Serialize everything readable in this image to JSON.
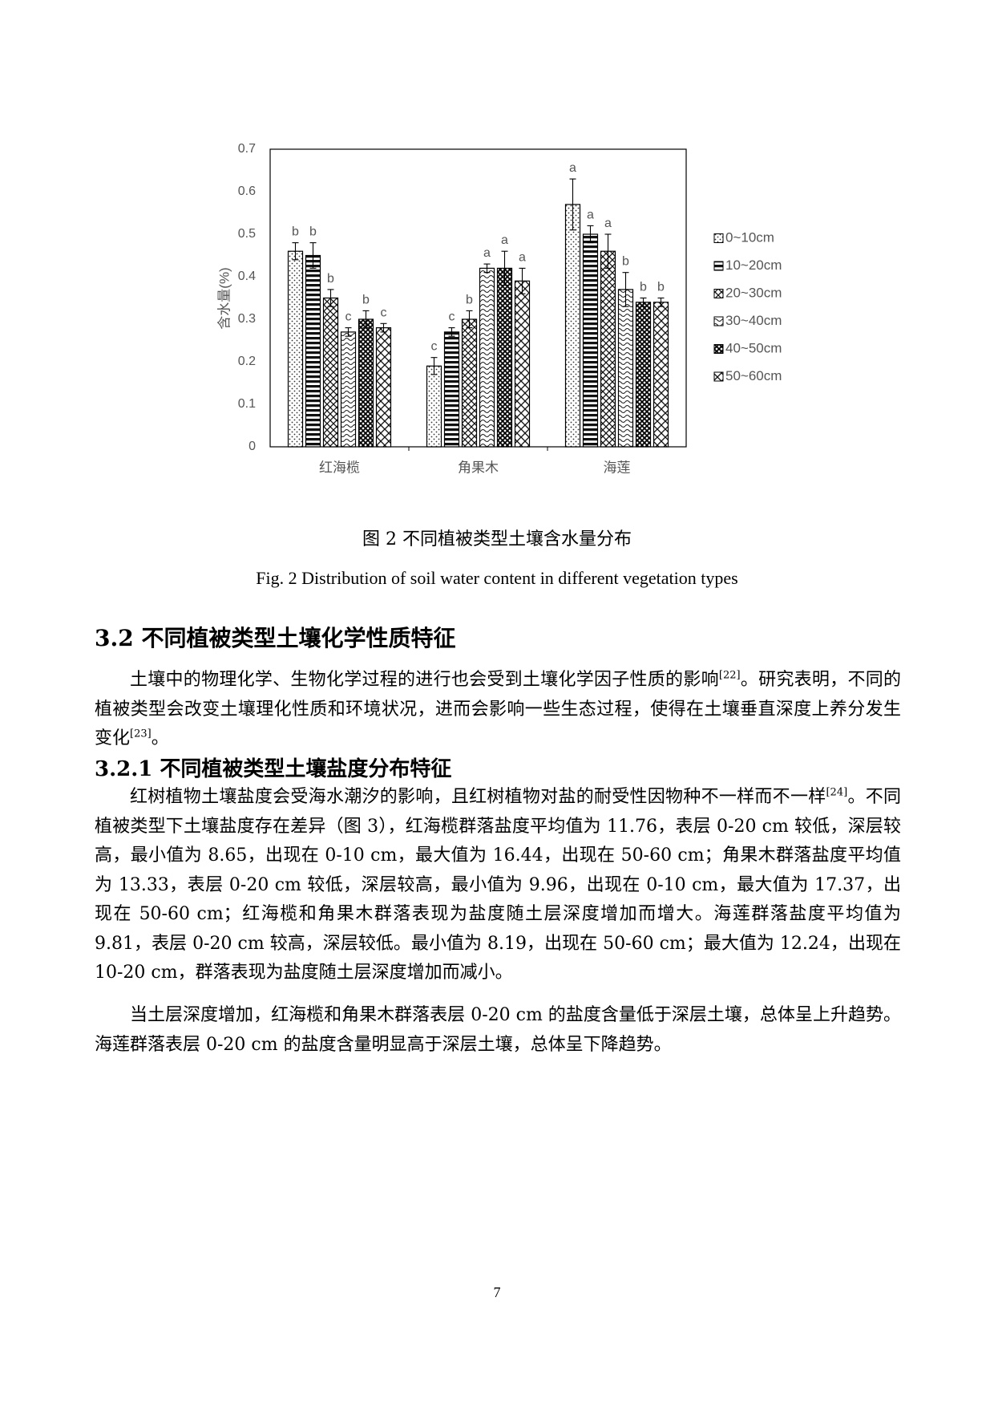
{
  "chart_data": {
    "type": "bar",
    "title": "",
    "xlabel": "",
    "ylabel": "含水量(%)",
    "ylim": [
      0,
      0.7
    ],
    "yticks": [
      "0",
      "0.1",
      "0.2",
      "0.3",
      "0.4",
      "0.5",
      "0.6",
      "0.7"
    ],
    "categories": [
      "红海榄",
      "角果木",
      "海莲"
    ],
    "legend_position": "right",
    "grid": false,
    "series": [
      {
        "name": "0~10cm",
        "pattern": "dots",
        "values": [
          0.46,
          0.19,
          0.57
        ],
        "errors": [
          0.02,
          0.02,
          0.06
        ],
        "letters": [
          "b",
          "c",
          "a"
        ]
      },
      {
        "name": "10~20cm",
        "pattern": "hstripes",
        "values": [
          0.45,
          0.27,
          0.5
        ],
        "errors": [
          0.03,
          0.01,
          0.02
        ],
        "letters": [
          "b",
          "c",
          "a"
        ]
      },
      {
        "name": "20~30cm",
        "pattern": "crosshatch",
        "values": [
          0.35,
          0.3,
          0.46
        ],
        "errors": [
          0.02,
          0.02,
          0.04
        ],
        "letters": [
          "b",
          "b",
          "a"
        ]
      },
      {
        "name": "30~40cm",
        "pattern": "wavy",
        "values": [
          0.27,
          0.42,
          0.37
        ],
        "errors": [
          0.01,
          0.01,
          0.04
        ],
        "letters": [
          "c",
          "a",
          "b"
        ]
      },
      {
        "name": "40~50cm",
        "pattern": "diagcross",
        "values": [
          0.3,
          0.42,
          0.34
        ],
        "errors": [
          0.02,
          0.04,
          0.01
        ],
        "letters": [
          "b",
          "a",
          "b"
        ]
      },
      {
        "name": "50~60cm",
        "pattern": "lattice",
        "values": [
          0.28,
          0.39,
          0.34
        ],
        "errors": [
          0.01,
          0.03,
          0.01
        ],
        "letters": [
          "c",
          "a",
          "b"
        ]
      }
    ]
  },
  "captions": {
    "cn": "图 2 不同植被类型土壤含水量分布",
    "en": "Fig. 2 Distribution of soil water content in different vegetation types"
  },
  "section": {
    "heading": "3.2 不同植被类型土壤化学性质特征",
    "para1_a": "土壤中的物理化学、生物化学过程的进行也会受到土壤化学因子性质的影响",
    "para1_ref1": "[22]",
    "para1_b": "。研究表明，不同的植被类型会改变土壤理化性质和环境状况，进而会影响一些生态过程，使得在土壤垂直深度上养分发生变化",
    "para1_ref2": "[23]",
    "para1_c": "。"
  },
  "subsection": {
    "heading": "3.2.1 不同植被类型土壤盐度分布特征",
    "para2_a": "红树植物土壤盐度会受海水潮汐的影响，且红树植物对盐的耐受性因物种不一样而不一样",
    "para2_ref": "[24]",
    "para2_b": "。不同植被类型下土壤盐度存在差异（图 3），红海榄群落盐度平均值为 11.76，表层 0-20 cm 较低，深层较高，最小值为 8.65，出现在 0-10 cm，最大值为 16.44，出现在 50-60 cm；角果木群落盐度平均值为 13.33，表层 0-20 cm 较低，深层较高，最小值为 9.96，出现在 0-10 cm，最大值为 17.37，出现在 50-60 cm；红海榄和角果木群落表现为盐度随土层深度增加而增大。海莲群落盐度平均值为 9.81，表层 0-20 cm 较高，深层较低。最小值为 8.19，出现在 50-60 cm；最大值为 12.24，出现在 10-20 cm，群落表现为盐度随土层深度增加而减小。",
    "para3": "当土层深度增加，红海榄和角果木群落表层 0-20 cm 的盐度含量低于深层土壤，总体呈上升趋势。海莲群落表层 0-20 cm 的盐度含量明显高于深层土壤，总体呈下降趋势。"
  },
  "page_number": "7"
}
